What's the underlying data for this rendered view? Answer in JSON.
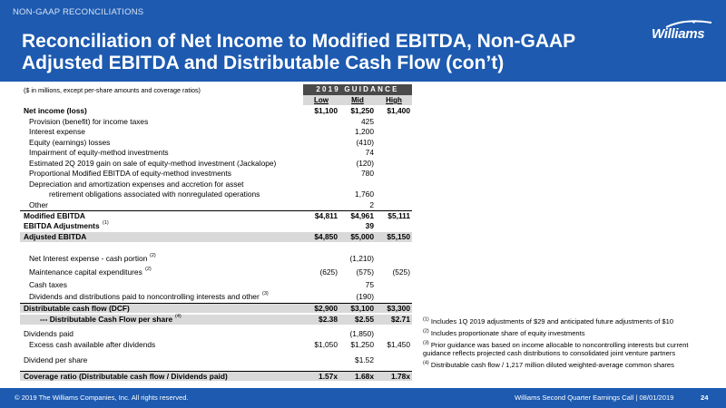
{
  "header": {
    "section_label": "NON-GAAP RECONCILIATIONS",
    "title": "Reconciliation of Net Income to Modified EBITDA, Non-GAAP Adjusted EBITDA and Distributable Cash Flow (con’t)",
    "logo_text": "Williams"
  },
  "table": {
    "units_note": "($ in millions, except per-share amounts and coverage ratios)",
    "guidance_header": "2019 GUIDANCE",
    "columns": [
      "Low",
      "Mid",
      "High"
    ],
    "rows": [
      {
        "label": "Net income (loss)",
        "low": "$1,100",
        "mid": "$1,250",
        "high": "$1,400"
      },
      {
        "label": "Provision (benefit) for income taxes",
        "low": "",
        "mid": "425",
        "high": ""
      },
      {
        "label": "Interest expense",
        "low": "",
        "mid": "1,200",
        "high": ""
      },
      {
        "label": "Equity (earnings) losses",
        "low": "",
        "mid": "(410)",
        "high": ""
      },
      {
        "label": "Impairment of equity-method investments",
        "low": "",
        "mid": "74",
        "high": ""
      },
      {
        "label": "Estimated 2Q 2019 gain on sale of equity-method investment (Jackalope)",
        "low": "",
        "mid": "(120)",
        "high": ""
      },
      {
        "label": "Proportional Modified EBITDA of equity-method investments",
        "low": "",
        "mid": "780",
        "high": ""
      },
      {
        "label": "Depreciation and amortization expenses and accretion for asset",
        "low": "",
        "mid": "",
        "high": ""
      },
      {
        "label": "retirement obligations associated with nonregulated operations",
        "low": "",
        "mid": "1,760",
        "high": ""
      },
      {
        "label": "Other",
        "low": "",
        "mid": "2",
        "high": ""
      },
      {
        "label": "Modified EBITDA",
        "low": "$4,811",
        "mid": "$4,961",
        "high": "$5,111"
      },
      {
        "label": "EBITDA Adjustments",
        "fn": "(1)",
        "low": "",
        "mid": "39",
        "high": ""
      },
      {
        "label": "Adjusted EBITDA",
        "low": "$4,850",
        "mid": "$5,000",
        "high": "$5,150"
      },
      {
        "label": "Net Interest expense - cash portion",
        "fn": "(2)",
        "low": "",
        "mid": "(1,210)",
        "high": ""
      },
      {
        "label": "Maintenance capital expenditures",
        "fn": "(2)",
        "low": "(625)",
        "mid": "(575)",
        "high": "(525)"
      },
      {
        "label": "Cash taxes",
        "low": "",
        "mid": "75",
        "high": ""
      },
      {
        "label": "Dividends and distributions paid to noncontrolling interests and other",
        "fn": "(3)",
        "low": "",
        "mid": "(190)",
        "high": ""
      },
      {
        "label": "Distributable cash flow (DCF)",
        "low": "$2,900",
        "mid": "$3,100",
        "high": "$3,300"
      },
      {
        "label": "--- Distributable Cash Flow per share",
        "fn": "(4)",
        "low": "$2.38",
        "mid": "$2.55",
        "high": "$2.71"
      },
      {
        "label": "Dividends paid",
        "low": "",
        "mid": "(1,850)",
        "high": ""
      },
      {
        "label": "Excess cash available after dividends",
        "low": "$1,050",
        "mid": "$1,250",
        "high": "$1,450"
      },
      {
        "label": "Dividend per share",
        "low": "",
        "mid": "$1.52",
        "high": ""
      },
      {
        "label": "Coverage ratio (Distributable cash flow / Dividends paid)",
        "low": "1.57x",
        "mid": "1.68x",
        "high": "1.78x"
      }
    ]
  },
  "footnotes": [
    {
      "mark": "(1)",
      "text": "Includes 1Q 2019 adjustments of $29 and anticipated future adjustments of $10"
    },
    {
      "mark": "(2)",
      "text": "Includes proportionate share of equity investments"
    },
    {
      "mark": "(3)",
      "text": "Prior guidance was based on income allocable to noncontrolling interests but current guidance reflects projected cash distributions to consolidated joint venture partners"
    },
    {
      "mark": "(4)",
      "text": "Distributable cash flow / 1,217 million diluted weighted-average common shares"
    }
  ],
  "footer": {
    "copyright": "© 2019 The Williams Companies, Inc. All rights reserved.",
    "event": "Williams Second Quarter Earnings Call  |  08/01/2019",
    "page": "24"
  },
  "colors": {
    "brand_blue": "#1d5ab0",
    "table_shade": "#d9d9d9",
    "guidance_header": "#4a4a4a"
  }
}
